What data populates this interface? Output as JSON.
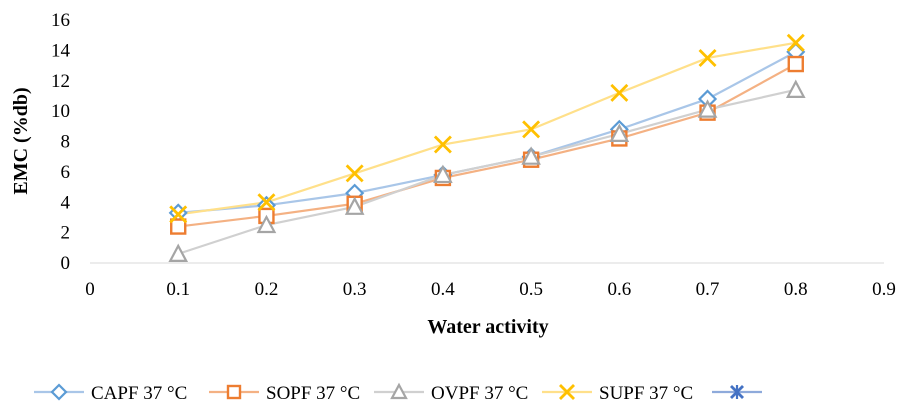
{
  "chart_data": {
    "type": "line",
    "title": "",
    "xlabel": "Water activity",
    "ylabel": "EMC (%db)",
    "xlim": [
      0,
      0.9
    ],
    "ylim": [
      0,
      16
    ],
    "x_ticks": [
      "0",
      "0.1",
      "0.2",
      "0.3",
      "0.4",
      "0.5",
      "0.6",
      "0.7",
      "0.8",
      "0.9"
    ],
    "y_ticks": [
      "0",
      "2",
      "4",
      "6",
      "8",
      "10",
      "12",
      "14",
      "16"
    ],
    "grid": false,
    "legend_position": "bottom",
    "series": [
      {
        "name": "CAPF 37 °C",
        "marker": "diamond",
        "color": "#5b9bd5",
        "line_color": "#a9c6e8",
        "x": [
          0.1,
          0.2,
          0.3,
          0.4,
          0.5,
          0.6,
          0.7,
          0.8
        ],
        "y": [
          3.3,
          3.8,
          4.6,
          5.8,
          7.0,
          8.8,
          10.8,
          13.9
        ]
      },
      {
        "name": "SOPF 37 °C",
        "marker": "square",
        "color": "#ed7d31",
        "line_color": "#f4b183",
        "x": [
          0.1,
          0.2,
          0.3,
          0.4,
          0.5,
          0.6,
          0.7,
          0.8
        ],
        "y": [
          2.4,
          3.1,
          3.9,
          5.6,
          6.8,
          8.2,
          9.9,
          13.1
        ]
      },
      {
        "name": "OVPF 37 °C",
        "marker": "triangle",
        "color": "#a5a5a5",
        "line_color": "#d0d0d0",
        "x": [
          0.1,
          0.2,
          0.3,
          0.4,
          0.5,
          0.6,
          0.7,
          0.8
        ],
        "y": [
          0.6,
          2.5,
          3.7,
          5.8,
          7.0,
          8.5,
          10.1,
          11.4
        ]
      },
      {
        "name": "SUPF 37 °C",
        "marker": "x",
        "color": "#ffc000",
        "line_color": "#ffe08a",
        "x": [
          0.1,
          0.2,
          0.3,
          0.4,
          0.5,
          0.6,
          0.7,
          0.8
        ],
        "y": [
          3.2,
          4.0,
          5.9,
          7.8,
          8.8,
          11.2,
          13.5,
          14.5
        ]
      },
      {
        "name": "",
        "marker": "star",
        "color": "#4472c4",
        "line_color": "#8eaadb",
        "x": [],
        "y": []
      }
    ]
  }
}
